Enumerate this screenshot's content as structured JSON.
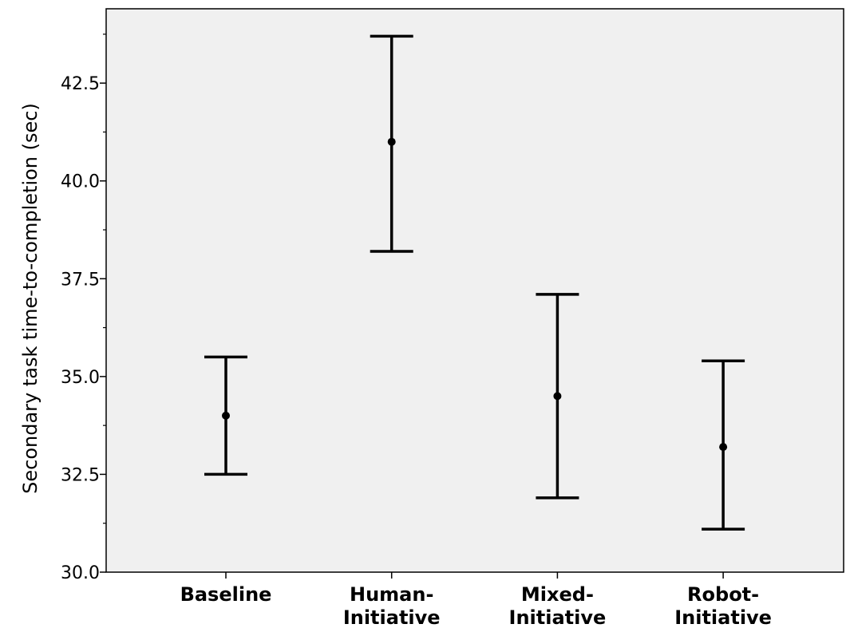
{
  "chart_data": {
    "type": "errorbar",
    "title": "",
    "xlabel": "",
    "ylabel": "Secondary task time-to-completion (sec)",
    "ylim": [
      30.0,
      44.4
    ],
    "yticks": [
      "30.0",
      "32.5",
      "35.0",
      "37.5",
      "40.0",
      "42.5"
    ],
    "categories": [
      {
        "id": "baseline",
        "lines": [
          "Baseline"
        ]
      },
      {
        "id": "human-initiative",
        "lines": [
          "Human-",
          "Initiative"
        ]
      },
      {
        "id": "mixed-initiative",
        "lines": [
          "Mixed-",
          "Initiative"
        ]
      },
      {
        "id": "robot-initiative",
        "lines": [
          "Robot-",
          "Initiative"
        ]
      }
    ],
    "series": [
      {
        "mean": [
          34.0,
          41.0,
          34.5,
          33.2
        ],
        "lower": [
          32.5,
          38.2,
          31.9,
          31.1
        ],
        "upper": [
          35.5,
          43.7,
          37.1,
          35.4
        ]
      }
    ],
    "grid": false,
    "legend": "none",
    "colors": {
      "plot_background": "#f0f0f0",
      "marks": "#000000"
    }
  }
}
